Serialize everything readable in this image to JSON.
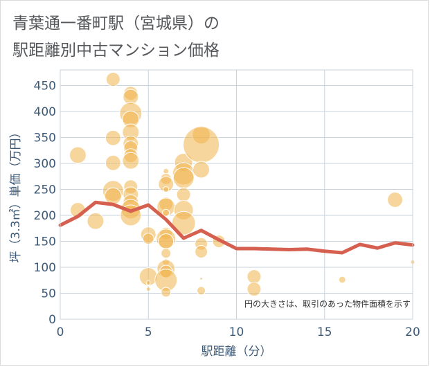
{
  "title_line1": "青葉通一番町駅（宮城県）の",
  "title_line2": "駅距離別中古マンション価格",
  "chart_data": {
    "type": "scatter",
    "xlabel": "駅距離（分）",
    "ylabel": "坪（3.3㎡）単価（万円）",
    "xlim": [
      0,
      20
    ],
    "ylim": [
      0,
      480
    ],
    "xticks": [
      0,
      5,
      10,
      15,
      20
    ],
    "yticks": [
      0,
      50,
      100,
      150,
      200,
      250,
      300,
      350,
      400,
      450
    ],
    "grid": true,
    "annotation": "円の大きさは、取引のあった物件面積を示す",
    "colors": {
      "bubble": "#f0b44c",
      "bubble_edge": "#ffffff",
      "line": "#d5604f",
      "axis_text": "#3d5a78",
      "grid": "#c8d3de",
      "plot_bg": "#ffffff"
    },
    "bubbles": [
      {
        "x": 1,
        "y": 316,
        "size": 12
      },
      {
        "x": 1,
        "y": 210,
        "size": 11
      },
      {
        "x": 2,
        "y": 189,
        "size": 12
      },
      {
        "x": 3,
        "y": 462,
        "size": 10
      },
      {
        "x": 3,
        "y": 349,
        "size": 11
      },
      {
        "x": 3,
        "y": 301,
        "size": 11
      },
      {
        "x": 3,
        "y": 247,
        "size": 15
      },
      {
        "x": 3,
        "y": 237,
        "size": 12
      },
      {
        "x": 4,
        "y": 435,
        "size": 10
      },
      {
        "x": 4,
        "y": 428,
        "size": 11
      },
      {
        "x": 4,
        "y": 396,
        "size": 16
      },
      {
        "x": 4,
        "y": 385,
        "size": 12
      },
      {
        "x": 4,
        "y": 360,
        "size": 12
      },
      {
        "x": 4,
        "y": 338,
        "size": 11
      },
      {
        "x": 4,
        "y": 330,
        "size": 10
      },
      {
        "x": 4,
        "y": 315,
        "size": 10
      },
      {
        "x": 4,
        "y": 305,
        "size": 12
      },
      {
        "x": 4,
        "y": 255,
        "size": 10
      },
      {
        "x": 4,
        "y": 240,
        "size": 11
      },
      {
        "x": 4,
        "y": 225,
        "size": 11
      },
      {
        "x": 4,
        "y": 212,
        "size": 14
      },
      {
        "x": 4,
        "y": 200,
        "size": 15
      },
      {
        "x": 5,
        "y": 163,
        "size": 11
      },
      {
        "x": 5,
        "y": 155,
        "size": 8
      },
      {
        "x": 5,
        "y": 82,
        "size": 13
      },
      {
        "x": 5,
        "y": 70,
        "size": 3
      },
      {
        "x": 5,
        "y": 58,
        "size": 3
      },
      {
        "x": 6,
        "y": 285,
        "size": 4
      },
      {
        "x": 6,
        "y": 270,
        "size": 8
      },
      {
        "x": 6,
        "y": 260,
        "size": 11
      },
      {
        "x": 6,
        "y": 250,
        "size": 4
      },
      {
        "x": 6,
        "y": 222,
        "size": 10
      },
      {
        "x": 6,
        "y": 216,
        "size": 13
      },
      {
        "x": 6,
        "y": 205,
        "size": 5
      },
      {
        "x": 6,
        "y": 165,
        "size": 9
      },
      {
        "x": 6,
        "y": 155,
        "size": 14
      },
      {
        "x": 6,
        "y": 150,
        "size": 11
      },
      {
        "x": 6,
        "y": 127,
        "size": 7
      },
      {
        "x": 6,
        "y": 110,
        "size": 5
      },
      {
        "x": 6,
        "y": 97,
        "size": 13
      },
      {
        "x": 6,
        "y": 92,
        "size": 9
      },
      {
        "x": 6,
        "y": 75,
        "size": 16
      },
      {
        "x": 6,
        "y": 52,
        "size": 7
      },
      {
        "x": 7,
        "y": 302,
        "size": 13
      },
      {
        "x": 7,
        "y": 280,
        "size": 16
      },
      {
        "x": 7,
        "y": 272,
        "size": 15
      },
      {
        "x": 7,
        "y": 240,
        "size": 10
      },
      {
        "x": 7,
        "y": 210,
        "size": 14
      },
      {
        "x": 7,
        "y": 185,
        "size": 17
      },
      {
        "x": 8,
        "y": 355,
        "size": 13
      },
      {
        "x": 8,
        "y": 336,
        "size": 26
      },
      {
        "x": 8,
        "y": 288,
        "size": 12
      },
      {
        "x": 8,
        "y": 145,
        "size": 9
      },
      {
        "x": 8,
        "y": 130,
        "size": 9
      },
      {
        "x": 8,
        "y": 78,
        "size": 2
      },
      {
        "x": 8,
        "y": 55,
        "size": 6
      },
      {
        "x": 9,
        "y": 150,
        "size": 9
      },
      {
        "x": 11,
        "y": 82,
        "size": 10
      },
      {
        "x": 11,
        "y": 58,
        "size": 10
      },
      {
        "x": 16,
        "y": 76,
        "size": 5
      },
      {
        "x": 19,
        "y": 230,
        "size": 11
      },
      {
        "x": 20,
        "y": 110,
        "size": 3
      }
    ],
    "average_line": {
      "x": [
        0,
        1,
        2,
        3,
        4,
        5,
        6,
        7,
        8,
        9,
        10,
        11,
        12,
        13,
        14,
        15,
        16,
        17,
        18,
        19,
        20
      ],
      "y": [
        181,
        198,
        225,
        221,
        208,
        220,
        192,
        156,
        171,
        153,
        136,
        136,
        135,
        134,
        135,
        131,
        128,
        144,
        137,
        147,
        143
      ]
    }
  }
}
